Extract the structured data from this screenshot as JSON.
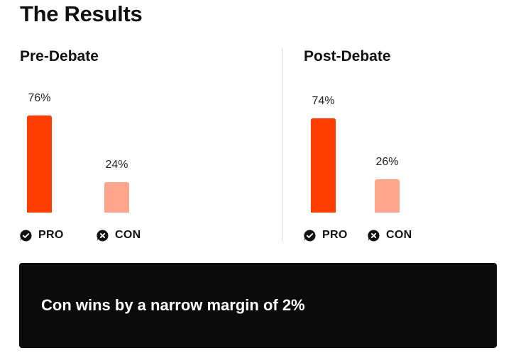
{
  "title": "The Results",
  "colors": {
    "pro": "#ff3d00",
    "con": "#ffa68c",
    "banner": "#0b0b0b"
  },
  "legend": {
    "pro": {
      "label": "PRO",
      "icon": "check-bubble-icon"
    },
    "con": {
      "label": "CON",
      "icon": "x-bubble-icon"
    }
  },
  "chart_data": [
    {
      "type": "bar",
      "title": "Pre-Debate",
      "categories": [
        "PRO",
        "CON"
      ],
      "values": [
        76,
        24
      ],
      "labels": [
        "76%",
        "24%"
      ],
      "ylim": [
        0,
        100
      ]
    },
    {
      "type": "bar",
      "title": "Post-Debate",
      "categories": [
        "PRO",
        "CON"
      ],
      "values": [
        74,
        26
      ],
      "labels": [
        "74%",
        "26%"
      ],
      "ylim": [
        0,
        100
      ]
    }
  ],
  "result_text": "Con wins by a narrow margin of 2%"
}
